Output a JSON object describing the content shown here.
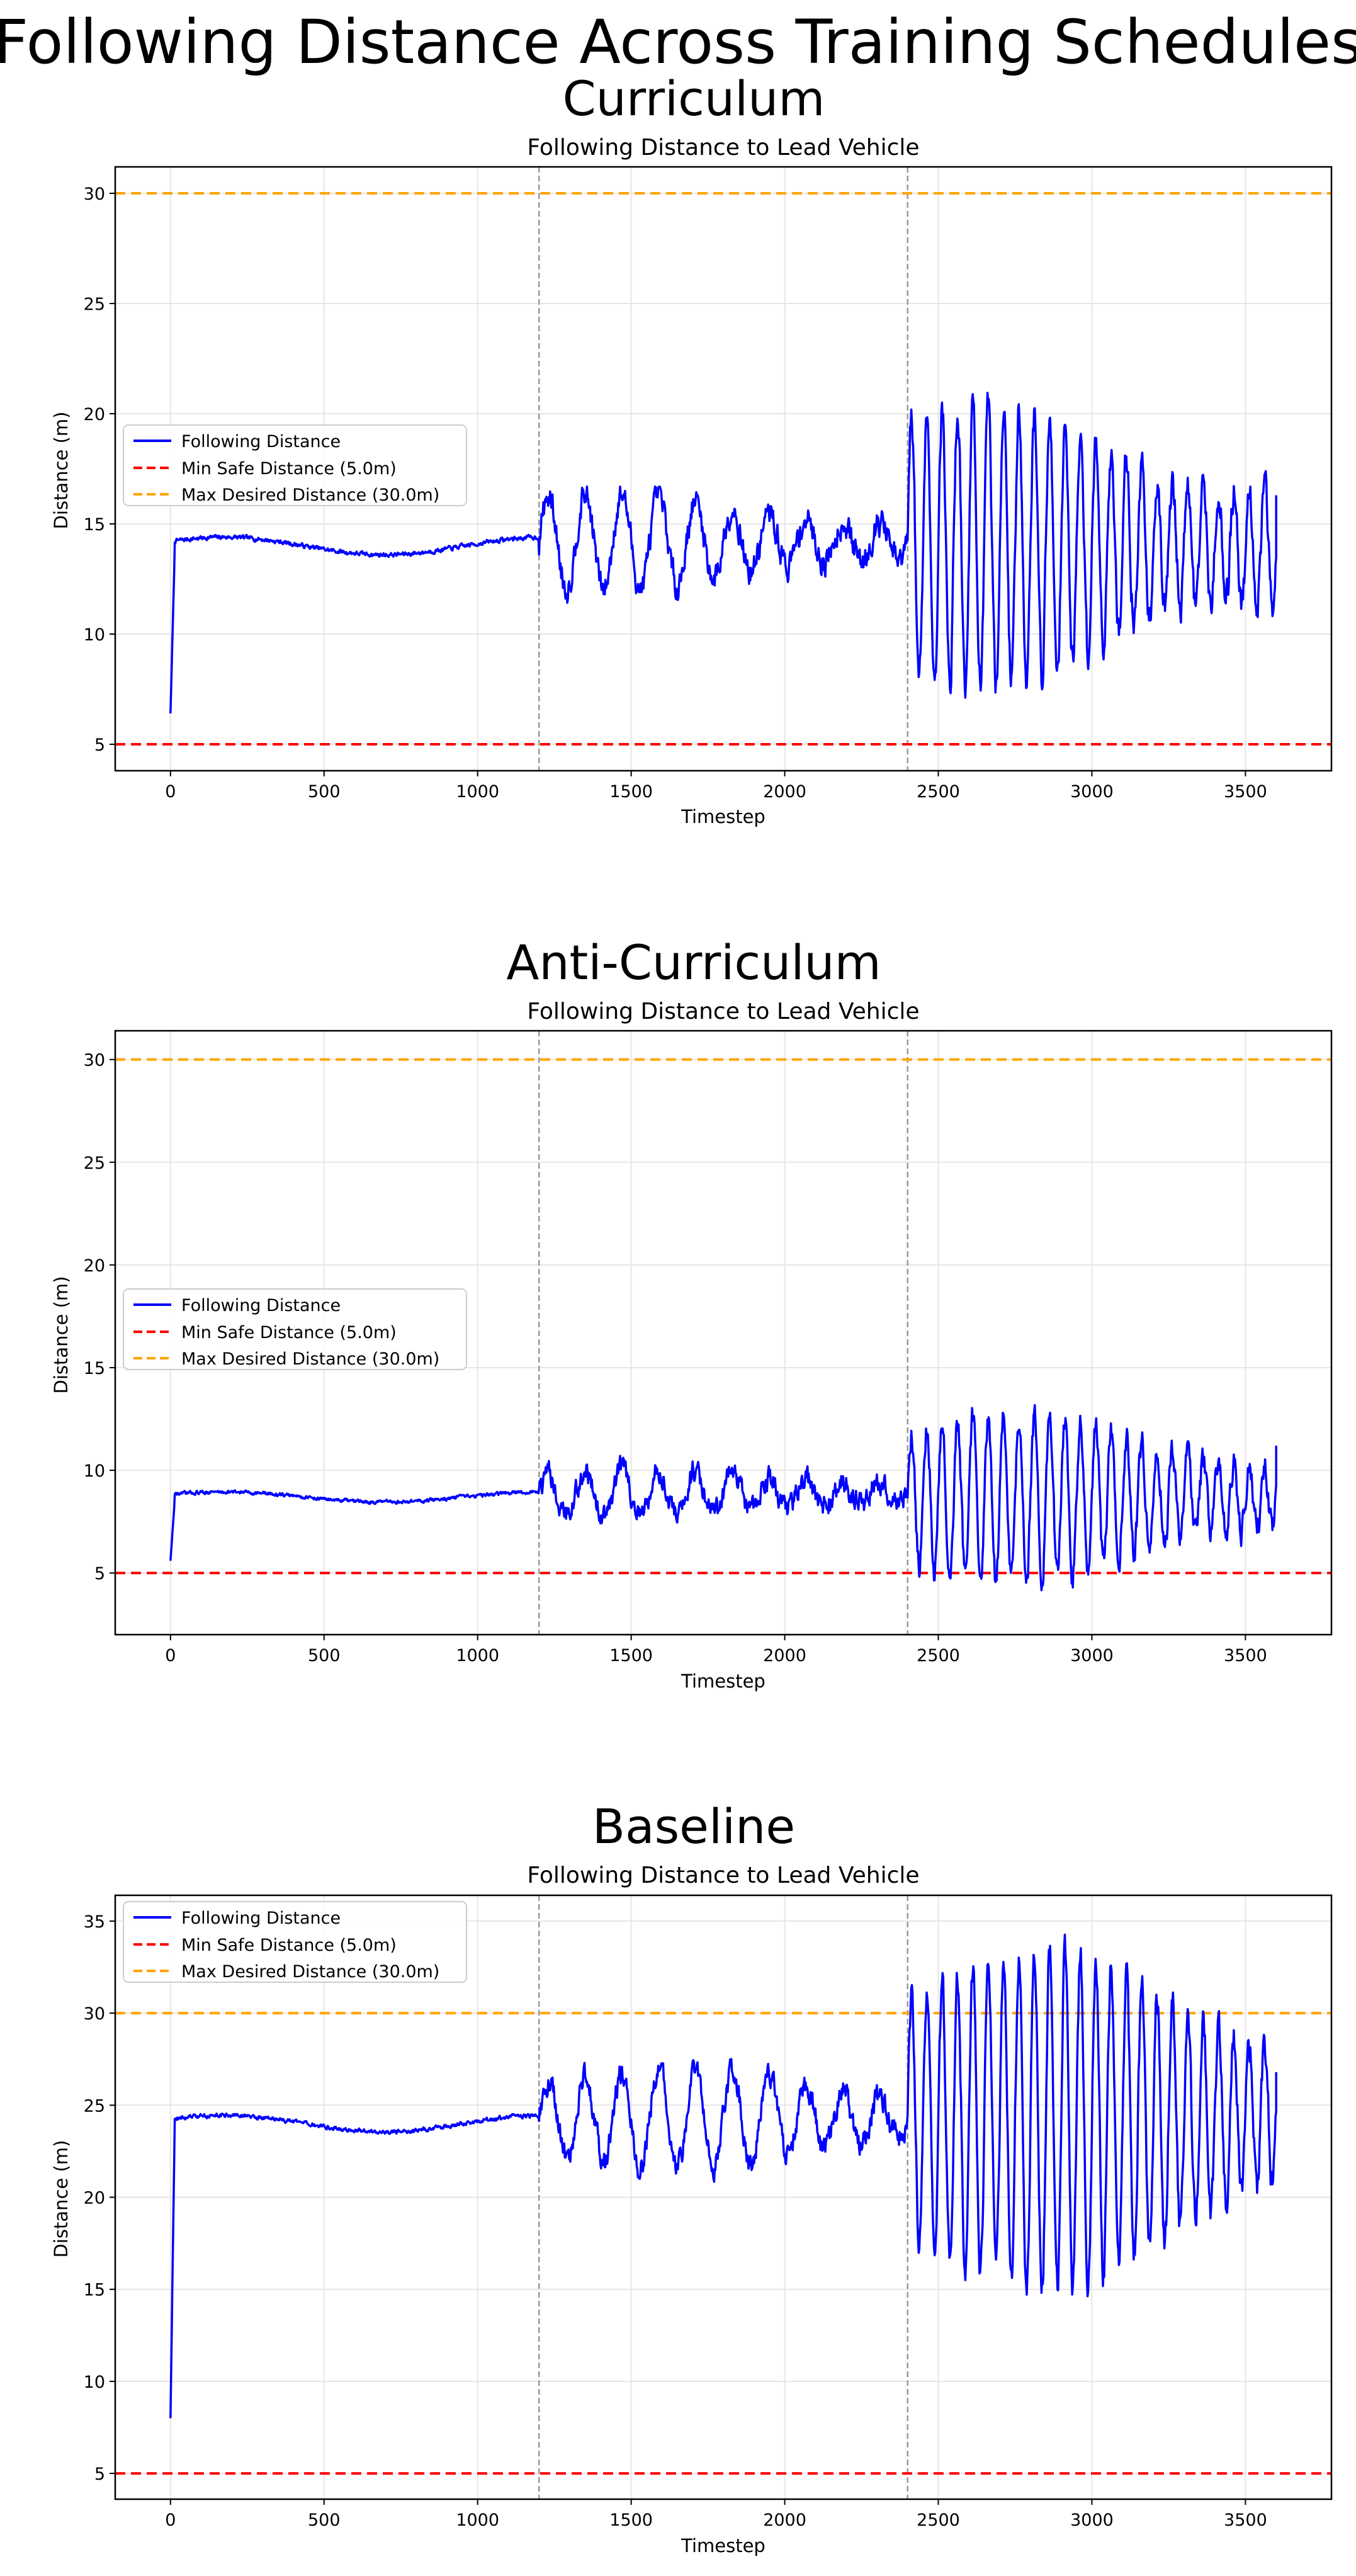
{
  "figure": {
    "title": "Following Distance Across Training Schedules"
  },
  "chart_data": [
    {
      "type": "line",
      "panel_title": "Curriculum",
      "title": "Following Distance to Lead Vehicle",
      "xlabel": "Timestep",
      "ylabel": "Distance (m)",
      "xlim": [
        -180,
        3780
      ],
      "ylim": [
        3.8,
        31.2
      ],
      "xticks": [
        0,
        500,
        1000,
        1500,
        2000,
        2500,
        3000,
        3500
      ],
      "yticks": [
        5,
        10,
        15,
        20,
        25,
        30
      ],
      "grid": true,
      "legend": "center-left",
      "phase_boundaries": [
        1200,
        2400
      ],
      "series": [
        {
          "name": "Following Distance",
          "color": "#0000ff",
          "style": "solid",
          "x_start": 0,
          "x_end": 3600,
          "phases": [
            {
              "x0": 0,
              "x1": 1200,
              "start": 6.4,
              "rise_to": 13.9,
              "level": 14.0,
              "wobble": 0.4,
              "noise": 0.18
            },
            {
              "x0": 1200,
              "x1": 2400,
              "center": 14.2,
              "amplitude": 1.9,
              "period": 120,
              "noise": 0.55,
              "min": 11.0,
              "max": 16.7
            },
            {
              "x0": 2400,
              "x1": 3600,
              "center": 14.0,
              "amplitude": 5.5,
              "period": 50,
              "noise": 0.7,
              "min": 6.8,
              "max": 21.0,
              "end": 16.3
            }
          ]
        },
        {
          "name": "Min Safe Distance (5.0m)",
          "color": "#ff0000",
          "style": "dashed",
          "y": 5.0
        },
        {
          "name": "Max Desired Distance (30.0m)",
          "color": "#ffa500",
          "style": "dashed",
          "y": 30.0
        }
      ]
    },
    {
      "type": "line",
      "panel_title": "Anti-Curriculum",
      "title": "Following Distance to Lead Vehicle",
      "xlabel": "Timestep",
      "ylabel": "Distance (m)",
      "xlim": [
        -180,
        3780
      ],
      "ylim": [
        2.0,
        31.4
      ],
      "xticks": [
        0,
        500,
        1000,
        1500,
        2000,
        2500,
        3000,
        3500
      ],
      "yticks": [
        5,
        10,
        15,
        20,
        25,
        30
      ],
      "grid": true,
      "legend": "center-left",
      "phase_boundaries": [
        1200,
        2400
      ],
      "series": [
        {
          "name": "Following Distance",
          "color": "#0000ff",
          "style": "solid",
          "x_start": 0,
          "x_end": 3600,
          "phases": [
            {
              "x0": 0,
              "x1": 1200,
              "start": 5.6,
              "rise_to": 8.6,
              "level": 8.7,
              "wobble": 0.25,
              "noise": 0.15
            },
            {
              "x0": 1200,
              "x1": 2400,
              "center": 8.9,
              "amplitude": 1.0,
              "period": 120,
              "noise": 0.5,
              "min": 6.7,
              "max": 11.3
            },
            {
              "x0": 2400,
              "x1": 3600,
              "center": 8.7,
              "amplitude": 3.5,
              "period": 50,
              "noise": 0.6,
              "min": 3.3,
              "max": 14.9,
              "end": 11.2
            }
          ]
        },
        {
          "name": "Min Safe Distance (5.0m)",
          "color": "#ff0000",
          "style": "dashed",
          "y": 5.0
        },
        {
          "name": "Max Desired Distance (30.0m)",
          "color": "#ffa500",
          "style": "dashed",
          "y": 30.0
        }
      ]
    },
    {
      "type": "line",
      "panel_title": "Baseline",
      "title": "Following Distance to Lead Vehicle",
      "xlabel": "Timestep",
      "ylabel": "Distance (m)",
      "xlim": [
        -180,
        3780
      ],
      "ylim": [
        3.6,
        36.4
      ],
      "xticks": [
        0,
        500,
        1000,
        1500,
        2000,
        2500,
        3000,
        3500
      ],
      "yticks": [
        5,
        10,
        15,
        20,
        25,
        30,
        35
      ],
      "grid": true,
      "legend": "upper-left",
      "phase_boundaries": [
        1200,
        2400
      ],
      "series": [
        {
          "name": "Following Distance",
          "color": "#0000ff",
          "style": "solid",
          "x_start": 0,
          "x_end": 3600,
          "phases": [
            {
              "x0": 0,
              "x1": 1200,
              "start": 8.0,
              "rise_to": 24.3,
              "level": 24.0,
              "wobble": 0.45,
              "noise": 0.2
            },
            {
              "x0": 1200,
              "x1": 2400,
              "center": 24.3,
              "amplitude": 2.4,
              "period": 120,
              "noise": 0.6,
              "min": 20.5,
              "max": 28.2
            },
            {
              "x0": 2400,
              "x1": 3600,
              "center": 24.3,
              "amplitude": 8.0,
              "period": 50,
              "noise": 0.8,
              "min": 14.3,
              "max": 35.0,
              "end": 26.8
            }
          ]
        },
        {
          "name": "Min Safe Distance (5.0m)",
          "color": "#ff0000",
          "style": "dashed",
          "y": 5.0
        },
        {
          "name": "Max Desired Distance (30.0m)",
          "color": "#ffa500",
          "style": "dashed",
          "y": 30.0
        }
      ]
    }
  ]
}
